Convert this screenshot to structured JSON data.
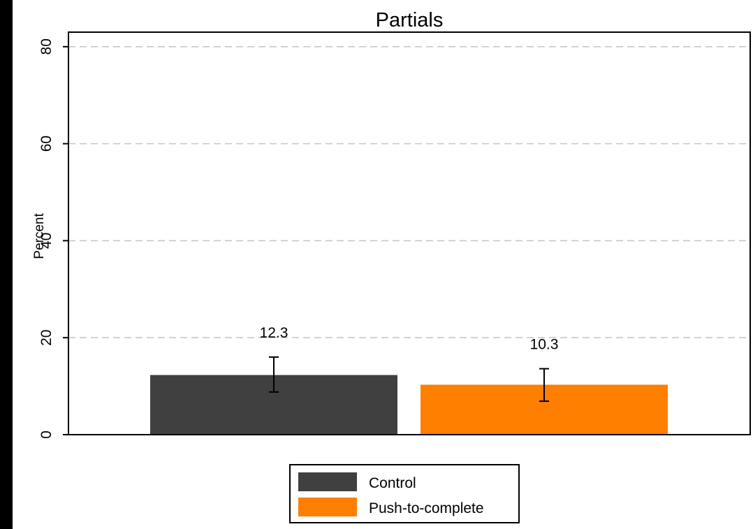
{
  "chart_data": {
    "type": "bar",
    "title": "Partials",
    "xlabel": "",
    "ylabel": "Percent",
    "ylim": [
      0,
      83
    ],
    "yticks": [
      0,
      20,
      40,
      60,
      80
    ],
    "grid": "horizontal dashed",
    "legend_position": "bottom-center",
    "series": [
      {
        "name": "Control",
        "value": 12.3,
        "ci": [
          8.8,
          16.0
        ],
        "label": "12.3",
        "color": "#404040"
      },
      {
        "name": "Push-to-complete",
        "value": 10.3,
        "ci": [
          6.9,
          13.6
        ],
        "label": "10.3",
        "color": "#ff7f00"
      }
    ]
  }
}
